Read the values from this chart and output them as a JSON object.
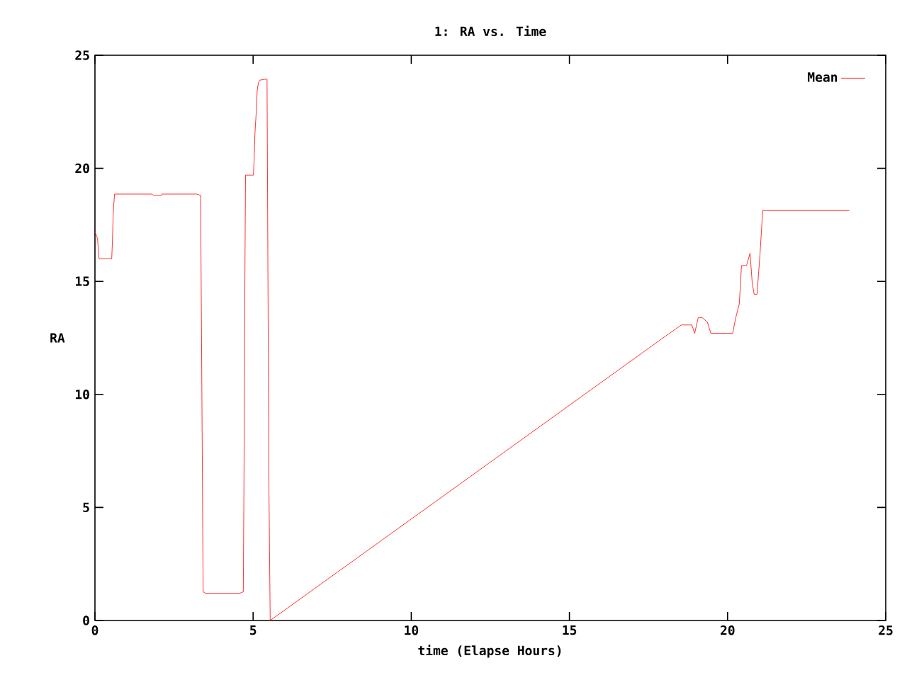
{
  "chart_data": {
    "type": "line",
    "title": "1: RA vs. Time",
    "xlabel": "time (Elapse Hours)",
    "ylabel": "RA",
    "xlim": [
      0,
      25
    ],
    "ylim": [
      0,
      25
    ],
    "xticks": [
      0,
      5,
      10,
      15,
      20,
      25
    ],
    "yticks": [
      0,
      5,
      10,
      15,
      20,
      25
    ],
    "legend": "top right",
    "grid": false,
    "series": [
      {
        "name": "Mean",
        "color": "#ff0000",
        "x": [
          0,
          0.08,
          0.13,
          0.53,
          0.55,
          0.58,
          0.62,
          1.8,
          1.85,
          2.1,
          2.12,
          3.22,
          3.34,
          3.36,
          3.4,
          3.42,
          3.5,
          4.57,
          4.69,
          4.71,
          4.74,
          4.76,
          5.01,
          5.03,
          5.06,
          5.1,
          5.13,
          5.17,
          5.22,
          5.44,
          5.46,
          5.5,
          5.54,
          18.09,
          18.54,
          18.87,
          18.96,
          19.07,
          19.2,
          19.36,
          19.47,
          20.16,
          20.26,
          20.37,
          20.44,
          20.6,
          20.71,
          20.78,
          20.84,
          20.93,
          21.02,
          21.11,
          23.85
        ],
        "values": [
          17.2,
          16.9,
          16.0,
          16.0,
          16.7,
          18.1,
          18.86,
          18.86,
          18.8,
          18.8,
          18.86,
          18.86,
          18.8,
          14.5,
          5.7,
          1.27,
          1.2,
          1.2,
          1.27,
          5.9,
          15.1,
          19.7,
          19.7,
          20.3,
          21.6,
          22.5,
          23.46,
          23.8,
          23.9,
          23.95,
          17.9,
          5.9,
          0,
          12.63,
          13.07,
          13.07,
          12.7,
          13.39,
          13.39,
          13.2,
          12.7,
          12.7,
          13.4,
          14.0,
          15.7,
          15.7,
          16.25,
          14.9,
          14.43,
          14.43,
          16.1,
          18.13,
          18.13
        ]
      }
    ]
  }
}
